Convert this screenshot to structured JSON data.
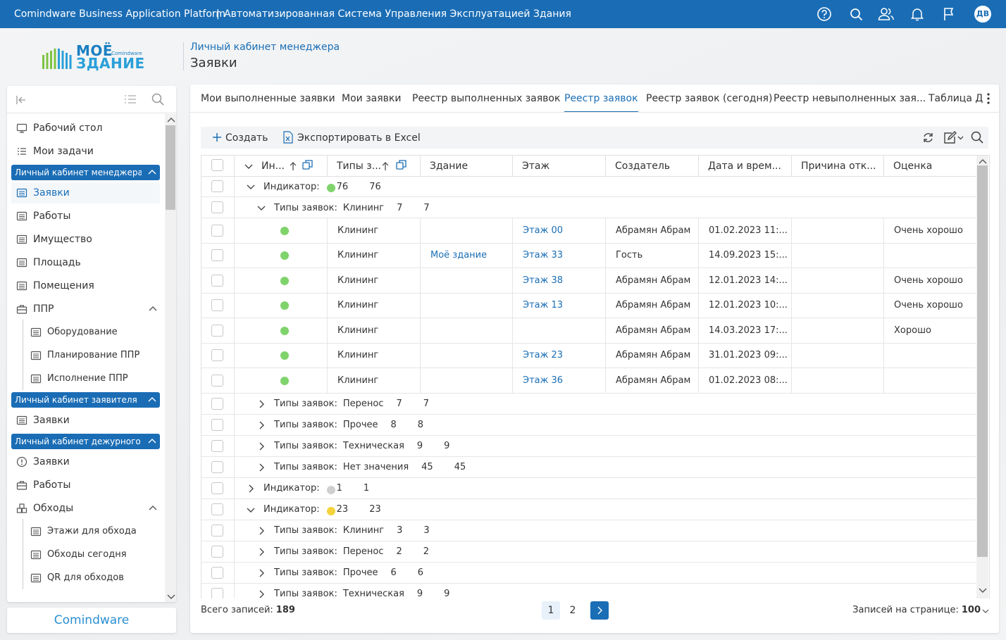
{
  "header": {
    "platform": "Comindware Business Application Platform",
    "separator": "|",
    "system": "Автоматизированная Система Управления Эксплуатацией Здания",
    "avatar": "ДВ"
  },
  "logo": {
    "line1": "МОЁ",
    "line2": "ЗДАНИЕ",
    "brand": "Comindware"
  },
  "breadcrumb": {
    "parent": "Личный кабинет менеджера",
    "title": "Заявки"
  },
  "sidebar": {
    "items": [
      {
        "kind": "item",
        "label": "Рабочий стол",
        "icon": "desktop"
      },
      {
        "kind": "item",
        "label": "Мои задачи",
        "icon": "tasks"
      },
      {
        "kind": "section",
        "label": "Личный кабинет менеджера"
      },
      {
        "kind": "item",
        "label": "Заявки",
        "icon": "list",
        "active": true
      },
      {
        "kind": "item",
        "label": "Работы",
        "icon": "list"
      },
      {
        "kind": "item",
        "label": "Имущество",
        "icon": "list"
      },
      {
        "kind": "item",
        "label": "Площадь",
        "icon": "list"
      },
      {
        "kind": "item",
        "label": "Помещения",
        "icon": "list"
      },
      {
        "kind": "item",
        "label": "ППР",
        "icon": "bag",
        "expanded": true
      },
      {
        "kind": "subitem",
        "label": "Оборудование",
        "icon": "list"
      },
      {
        "kind": "subitem",
        "label": "Планирование ППР",
        "icon": "list"
      },
      {
        "kind": "subitem",
        "label": "Исполнение ППР",
        "icon": "list"
      },
      {
        "kind": "section",
        "label": "Личный кабинет заявителя"
      },
      {
        "kind": "item",
        "label": "Заявки",
        "icon": "list"
      },
      {
        "kind": "section",
        "label": "Личный кабинет дежурного и..."
      },
      {
        "kind": "item",
        "label": "Заявки",
        "icon": "alert"
      },
      {
        "kind": "item",
        "label": "Работы",
        "icon": "bag"
      },
      {
        "kind": "item",
        "label": "Обходы",
        "icon": "boxes",
        "expanded": true
      },
      {
        "kind": "subitem",
        "label": "Этажи для обхода",
        "icon": "list"
      },
      {
        "kind": "subitem",
        "label": "Обходы сегодня",
        "icon": "list"
      },
      {
        "kind": "subitem",
        "label": "QR для обходов",
        "icon": "list"
      }
    ],
    "footer": "Comindware"
  },
  "tabs": {
    "items": [
      "Мои выполненные заявки",
      "Мои заявки",
      "Реестр выполненных заявок",
      "Реестр заявок",
      "Реестр заявок (сегодня)",
      "Реестр невыполненных зая...",
      "Таблица Д"
    ],
    "active": 3
  },
  "toolbar": {
    "create": "Создать",
    "export": "Экспортировать в Excel"
  },
  "table": {
    "columns": [
      {
        "label": "Ин...",
        "sorted": true,
        "grouped": true
      },
      {
        "label": "Типы з...",
        "sorted": true,
        "grouped": true
      },
      {
        "label": "Здание"
      },
      {
        "label": "Этаж"
      },
      {
        "label": "Создатель"
      },
      {
        "label": "Дата и врем..."
      },
      {
        "label": "Причина отк..."
      },
      {
        "label": "Оценка"
      }
    ],
    "rows": [
      {
        "level": 1,
        "expanded": true,
        "label": "Индикатор:",
        "dot": "#7fd36b",
        "counts": [
          76,
          76
        ]
      },
      {
        "level": 2,
        "expanded": true,
        "label": "Типы заявок:",
        "value": "Клининг",
        "counts": [
          7,
          7
        ]
      },
      {
        "dot": "#7fd36b",
        "cells": [
          "Клининг",
          null,
          "Этаж 00",
          "Абрамян Абрам",
          "01.02.2023 11:...",
          null,
          "Очень хорошо"
        ]
      },
      {
        "dot": "#7fd36b",
        "cells": [
          "Клининг",
          "Моё здание",
          "Этаж 33",
          "Гость",
          "14.09.2023 15:...",
          null,
          null
        ]
      },
      {
        "dot": "#7fd36b",
        "cells": [
          "Клининг",
          null,
          "Этаж 38",
          "Абрамян Абрам",
          "12.01.2023 14:...",
          null,
          "Очень хорошо"
        ]
      },
      {
        "dot": "#7fd36b",
        "cells": [
          "Клининг",
          null,
          "Этаж 13",
          "Абрамян Абрам",
          "12.01.2023 10:...",
          null,
          "Очень хорошо"
        ]
      },
      {
        "dot": "#7fd36b",
        "cells": [
          "Клининг",
          null,
          null,
          "Абрамян Абрам",
          "14.03.2023 17:...",
          null,
          "Хорошо"
        ]
      },
      {
        "dot": "#7fd36b",
        "cells": [
          "Клининг",
          null,
          "Этаж 23",
          "Абрамян Абрам",
          "31.01.2023 09:...",
          null,
          null
        ]
      },
      {
        "dot": "#7fd36b",
        "cells": [
          "Клининг",
          null,
          "Этаж 36",
          "Абрамян Абрам",
          "01.02.2023 08:...",
          null,
          null
        ]
      },
      {
        "level": 2,
        "label": "Типы заявок:",
        "value": "Перенос",
        "counts": [
          7,
          7
        ]
      },
      {
        "level": 2,
        "label": "Типы заявок:",
        "value": "Прочее",
        "counts": [
          8,
          8
        ]
      },
      {
        "level": 2,
        "label": "Типы заявок:",
        "value": "Техническая",
        "counts": [
          9,
          9
        ]
      },
      {
        "level": 2,
        "label": "Типы заявок:",
        "value": "Нет значения",
        "counts": [
          45,
          45
        ]
      },
      {
        "level": 1,
        "label": "Индикатор:",
        "dot": "#cfcfcf",
        "counts": [
          1,
          1
        ]
      },
      {
        "level": 1,
        "expanded": true,
        "label": "Индикатор:",
        "dot": "#f4d43a",
        "counts": [
          23,
          23
        ]
      },
      {
        "level": 2,
        "label": "Типы заявок:",
        "value": "Клининг",
        "counts": [
          3,
          3
        ]
      },
      {
        "level": 2,
        "label": "Типы заявок:",
        "value": "Перенос",
        "counts": [
          2,
          2
        ]
      },
      {
        "level": 2,
        "label": "Типы заявок:",
        "value": "Прочее",
        "counts": [
          6,
          6
        ]
      },
      {
        "level": 2,
        "label": "Типы заявок:",
        "value": "Техническая",
        "counts": [
          9,
          9
        ]
      }
    ]
  },
  "pagination": {
    "total_label": "Всего записей:",
    "total": 189,
    "pages": [
      1,
      2
    ],
    "current": 0,
    "per_page_label": "Записей на странице:",
    "per_page": 100
  }
}
